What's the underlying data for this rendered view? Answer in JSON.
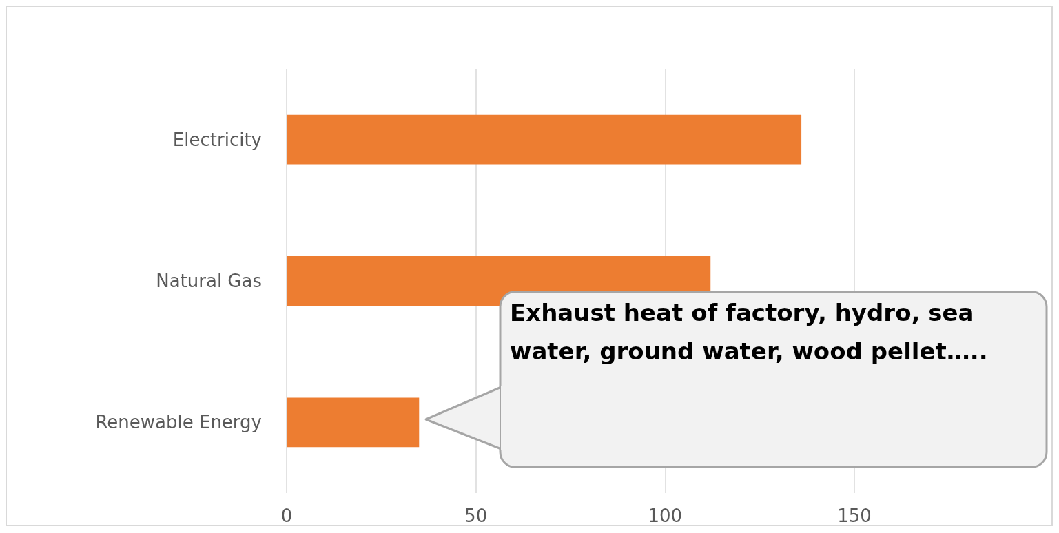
{
  "chart_data": {
    "type": "bar",
    "orientation": "horizontal",
    "categories": [
      "Electricity",
      "Natural Gas",
      "Renewable Energy"
    ],
    "values": [
      136,
      112,
      35
    ],
    "color": "#ed7d31",
    "xlim": [
      0,
      150
    ],
    "xticks": [
      0,
      50,
      100,
      150
    ],
    "grid": "x",
    "annotations": [
      "Exhaust heat of factory, hydro, sea water, ground water, wood pellet….."
    ]
  }
}
